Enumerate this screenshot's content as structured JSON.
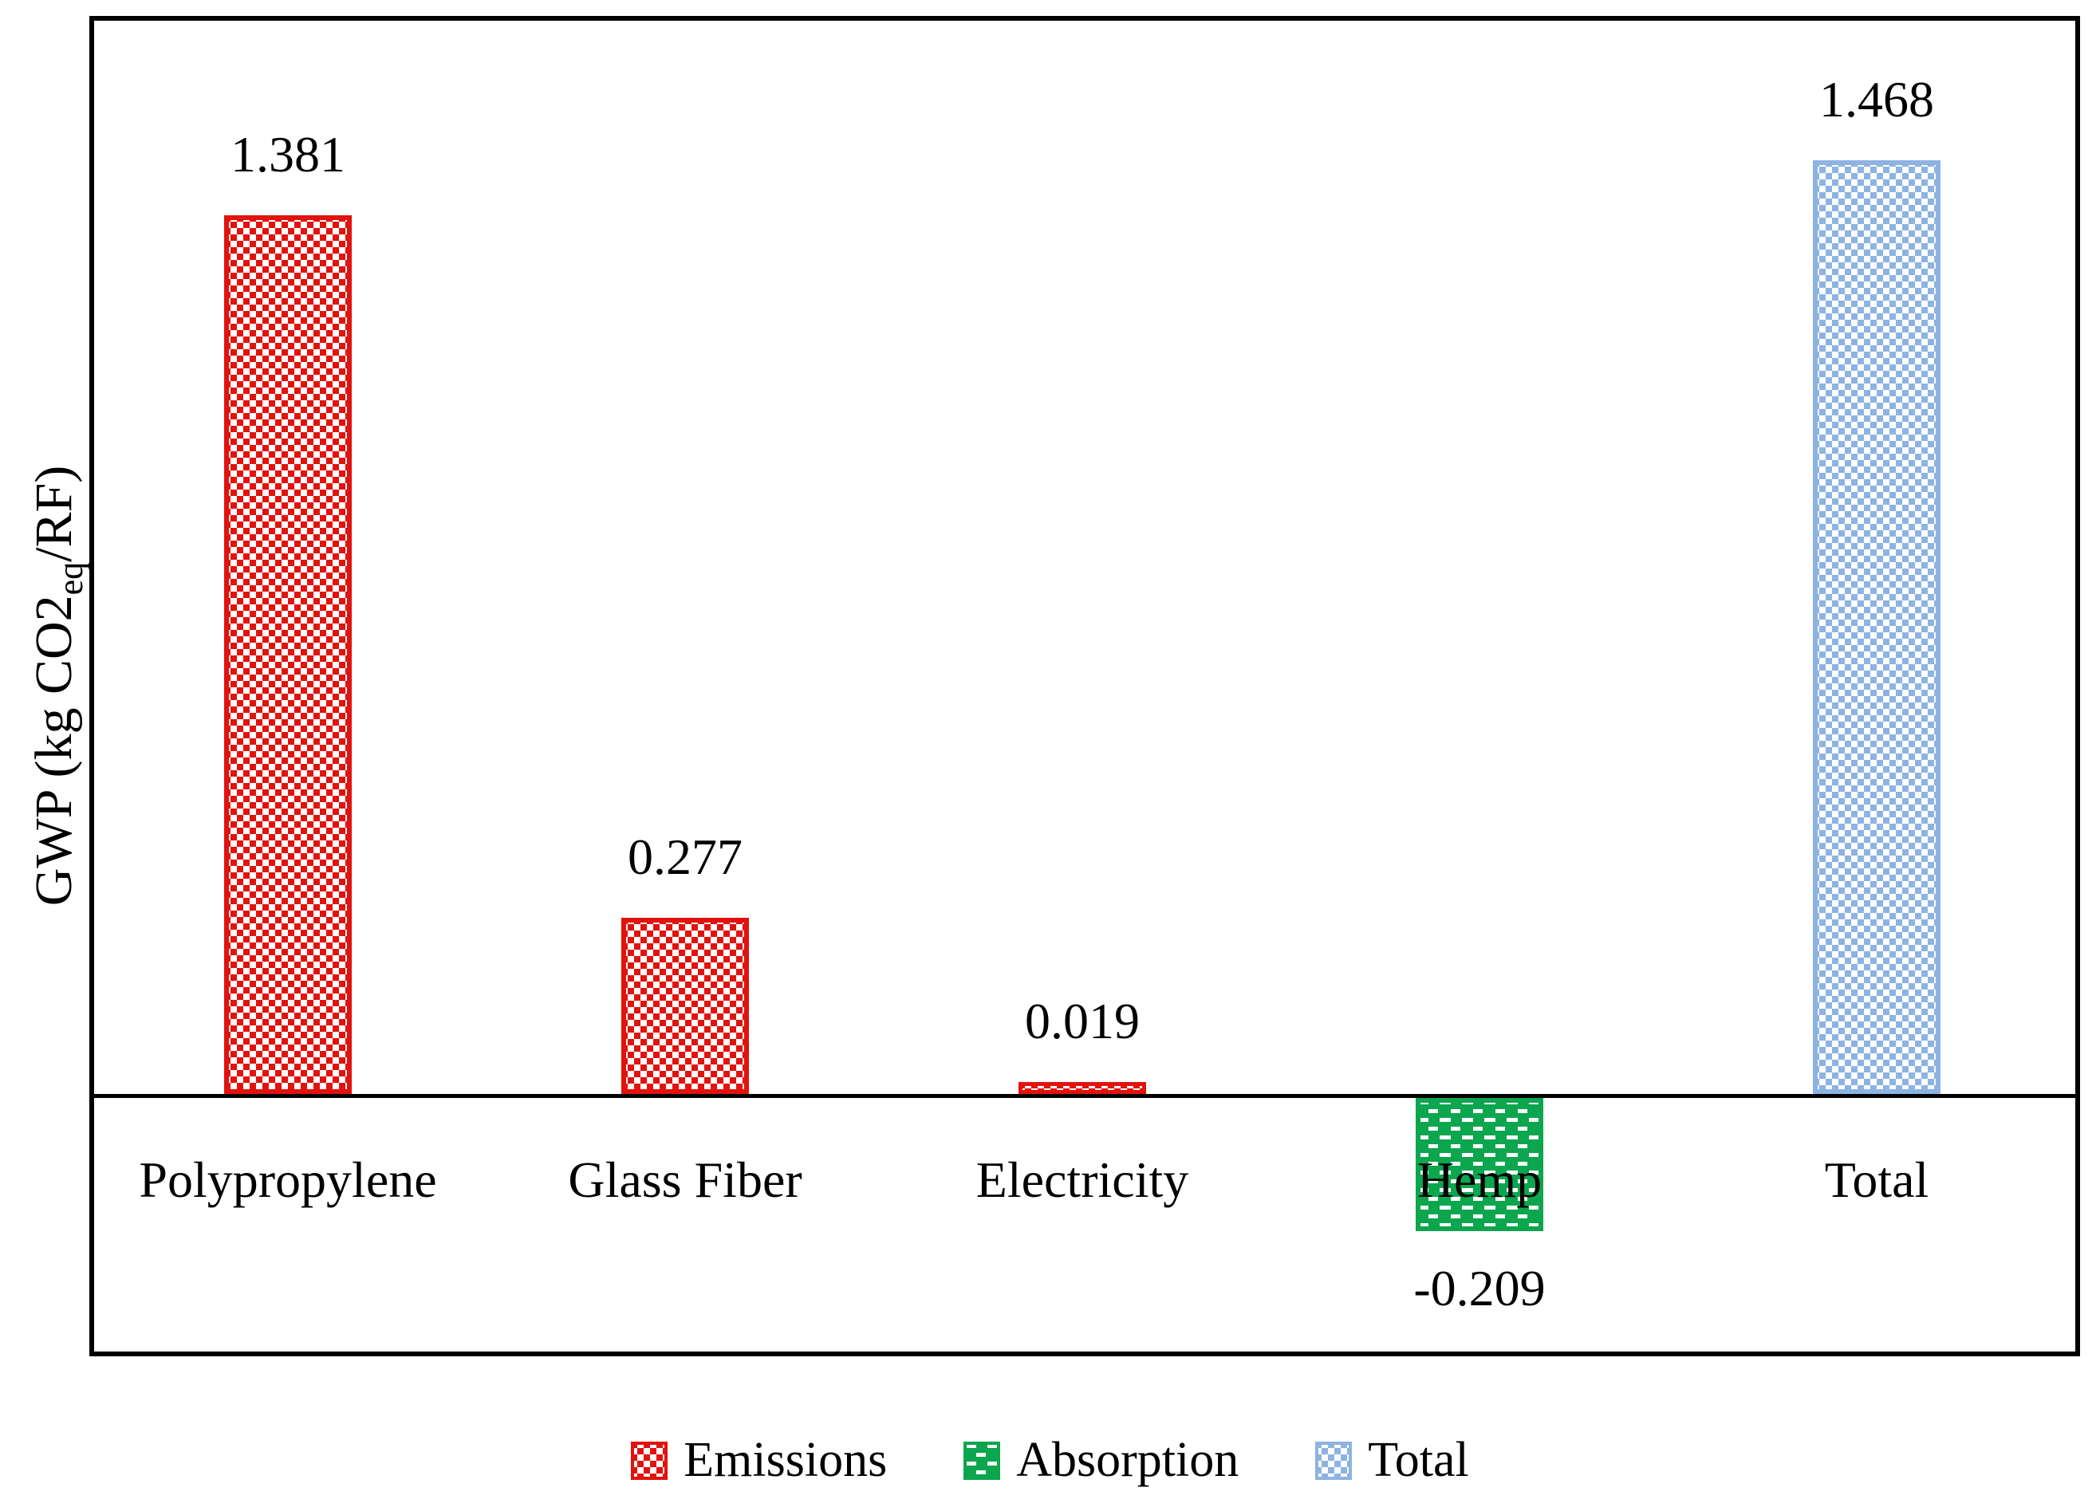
{
  "chart_data": {
    "type": "bar",
    "title": "",
    "xlabel": "",
    "ylabel": "GWP (kg CO2eq/RF)",
    "ylabel_parts": {
      "pre": "GWP (kg CO2",
      "sub": "eq",
      "post": "/RF)"
    },
    "categories": [
      "Polypropylene",
      "Glass Fiber",
      "Electricity",
      "Hemp",
      "Total"
    ],
    "values": [
      1.381,
      0.277,
      0.019,
      -0.209,
      1.468
    ],
    "value_labels": [
      "1.381",
      "0.277",
      "0.019",
      "-0.209",
      "1.468"
    ],
    "series_by_bar": [
      "Emissions",
      "Emissions",
      "Emissions",
      "Absorption",
      "Total"
    ],
    "ylim": [
      -0.4,
      1.69
    ],
    "grid": false,
    "y_tick_labels_visible": false,
    "legend_position": "bottom",
    "legend": [
      {
        "label": "Emissions",
        "color": "#e2120d",
        "pattern": "checker"
      },
      {
        "label": "Absorption",
        "color": "#0ca64e",
        "pattern": "dash"
      },
      {
        "label": "Total",
        "color": "#8db3e2",
        "pattern": "checker"
      }
    ]
  },
  "colors": {
    "plot_border": "#000000",
    "axis_line": "#000000",
    "text": "#000000",
    "background": "#ffffff",
    "emissions_red": "#e2120d",
    "absorption_green": "#0ca64e",
    "total_blue": "#8db3e2"
  }
}
